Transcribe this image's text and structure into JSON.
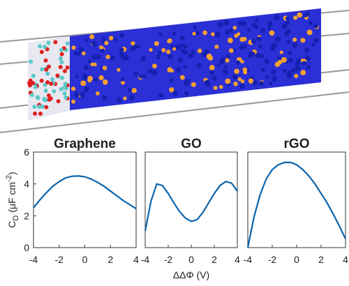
{
  "chart_data": [
    {
      "type": "line",
      "title": "Graphene",
      "ylabel": {
        "symbol": "C",
        "sub": "D",
        "unit": "(μF cm",
        "sup": "-2",
        "close": ")"
      },
      "x": [
        -4,
        -3.5,
        -3,
        -2.5,
        -2,
        -1.5,
        -1,
        -0.5,
        0,
        0.5,
        1,
        1.5,
        2,
        2.5,
        3,
        3.5,
        4
      ],
      "series": [
        {
          "color": "#0a64ad",
          "values": [
            2.5,
            3.0,
            3.45,
            3.85,
            4.15,
            4.38,
            4.48,
            4.5,
            4.45,
            4.3,
            4.1,
            3.85,
            3.55,
            3.25,
            2.95,
            2.7,
            2.45
          ]
        }
      ],
      "xlim": [
        -4,
        4
      ],
      "xticks": [
        -4,
        -2,
        0,
        2,
        4
      ],
      "ylim": [
        0,
        6
      ],
      "yticks": [
        0,
        2,
        4,
        6
      ]
    },
    {
      "type": "line",
      "title": "GO",
      "xlabel": "ΔΔΦ (V)",
      "x": [
        -4,
        -3.5,
        -3,
        -2.5,
        -2,
        -1.5,
        -1,
        -0.5,
        0,
        0.5,
        1,
        1.5,
        2,
        2.5,
        3,
        3.5,
        4
      ],
      "series": [
        {
          "color": "#0a64ad",
          "values": [
            1.05,
            2.9,
            4.0,
            3.9,
            3.4,
            2.8,
            2.25,
            1.85,
            1.65,
            1.75,
            2.2,
            2.8,
            3.4,
            3.9,
            4.15,
            4.05,
            3.55
          ]
        }
      ],
      "xlim": [
        -4,
        4
      ],
      "xticks": [
        -4,
        -2,
        0,
        2,
        4
      ],
      "ylim": [
        0,
        6
      ]
    },
    {
      "type": "line",
      "title": "rGO",
      "x": [
        -4,
        -3.5,
        -3,
        -2.5,
        -2,
        -1.5,
        -1,
        -0.5,
        0,
        0.5,
        1,
        1.5,
        2,
        2.5,
        3,
        3.5,
        4
      ],
      "series": [
        {
          "color": "#0a64ad",
          "values": [
            0,
            1.9,
            3.3,
            4.3,
            4.9,
            5.2,
            5.35,
            5.35,
            5.2,
            4.9,
            4.5,
            4.0,
            3.4,
            2.8,
            2.1,
            1.35,
            0.55
          ]
        }
      ],
      "xlim": [
        -4,
        4
      ],
      "xticks": [
        -4,
        -2,
        0,
        2,
        4
      ],
      "ylim": [
        0,
        6
      ]
    }
  ]
}
